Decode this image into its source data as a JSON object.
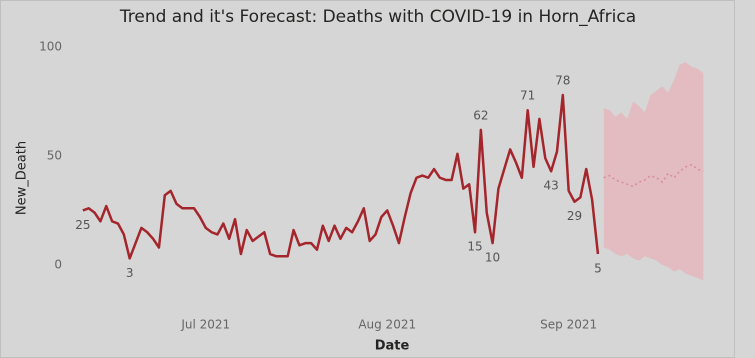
{
  "chart_data": {
    "type": "line",
    "title": "Trend and it's Forecast: Deaths with COVID-19 in Horn_Africa",
    "xlabel": "Date",
    "ylabel": "New_Death",
    "xlim": [
      -1,
      108
    ],
    "xticks": [
      {
        "value": 21,
        "label": "Jul 2021"
      },
      {
        "value": 52,
        "label": "Aug 2021"
      },
      {
        "value": 83,
        "label": "Sep 2021"
      }
    ],
    "ylim": [
      -11.5,
      107.8
    ],
    "yticks": [
      0,
      50,
      100
    ],
    "grid": false,
    "x": [
      0,
      1,
      2,
      3,
      4,
      5,
      6,
      7,
      8,
      9,
      10,
      11,
      12,
      13,
      14,
      15,
      16,
      17,
      18,
      19,
      20,
      21,
      22,
      23,
      24,
      25,
      26,
      27,
      28,
      29,
      30,
      31,
      32,
      33,
      34,
      35,
      36,
      37,
      38,
      39,
      40,
      41,
      42,
      43,
      44,
      45,
      46,
      47,
      48,
      49,
      50,
      51,
      52,
      53,
      54,
      55,
      56,
      57,
      58,
      59,
      60,
      61,
      62,
      63,
      64,
      65,
      66,
      67,
      68,
      69,
      70,
      71,
      72,
      73,
      74,
      75,
      76,
      77,
      78,
      79,
      80,
      81,
      82,
      83,
      84,
      85,
      86,
      87,
      88
    ],
    "series": [
      {
        "color": "#a4262c",
        "values": [
          25,
          26,
          24,
          20,
          27,
          20,
          19,
          14,
          3,
          10,
          17,
          15,
          12,
          8,
          32,
          34,
          28,
          26,
          26,
          26,
          22,
          17,
          15,
          14,
          19,
          12,
          21,
          5,
          16,
          11,
          13,
          15,
          5,
          4,
          4,
          4,
          16,
          9,
          10,
          10,
          7,
          18,
          11,
          18,
          12,
          17,
          15,
          20,
          26,
          11,
          14,
          22,
          25,
          18,
          10,
          22,
          33,
          40,
          41,
          40,
          44,
          40,
          39,
          39,
          51,
          35,
          37,
          15,
          62,
          24,
          10,
          35,
          44,
          53,
          47,
          40,
          71,
          45,
          67,
          49,
          43,
          52,
          78,
          34,
          29,
          31,
          44,
          30,
          5
        ],
        "value_labels": [
          "25",
          null,
          null,
          null,
          null,
          null,
          null,
          null,
          "3",
          null,
          null,
          null,
          null,
          null,
          null,
          null,
          null,
          null,
          null,
          null,
          null,
          null,
          null,
          null,
          null,
          null,
          null,
          null,
          null,
          null,
          null,
          null,
          null,
          null,
          null,
          null,
          null,
          null,
          null,
          null,
          null,
          null,
          null,
          null,
          null,
          null,
          null,
          null,
          null,
          null,
          null,
          null,
          null,
          null,
          null,
          null,
          null,
          null,
          null,
          null,
          null,
          null,
          null,
          null,
          null,
          null,
          null,
          "15",
          "62",
          null,
          "10",
          null,
          null,
          null,
          null,
          null,
          "71",
          null,
          null,
          null,
          "43",
          null,
          "78",
          null,
          "29",
          null,
          null,
          null,
          "5"
        ]
      }
    ],
    "forecast": {
      "color": "#d98a94",
      "band_color": "#e6b3b9",
      "x": [
        89,
        90,
        91,
        92,
        93,
        94,
        95,
        96,
        97,
        98,
        99,
        100,
        101,
        102,
        103,
        104,
        105,
        106
      ],
      "values": [
        40,
        41,
        39,
        38,
        37,
        36,
        38,
        39,
        41,
        40,
        38,
        42,
        40,
        43,
        45,
        46,
        44,
        43
      ],
      "upper": [
        72,
        71,
        68,
        70,
        67,
        75,
        73,
        70,
        78,
        80,
        82,
        79,
        85,
        92,
        93,
        91,
        90,
        88
      ],
      "lower": [
        8,
        7,
        5,
        4,
        5,
        3,
        2,
        4,
        3,
        2,
        0,
        -1,
        -3,
        -2,
        -4,
        -5,
        -6,
        -7
      ]
    }
  }
}
